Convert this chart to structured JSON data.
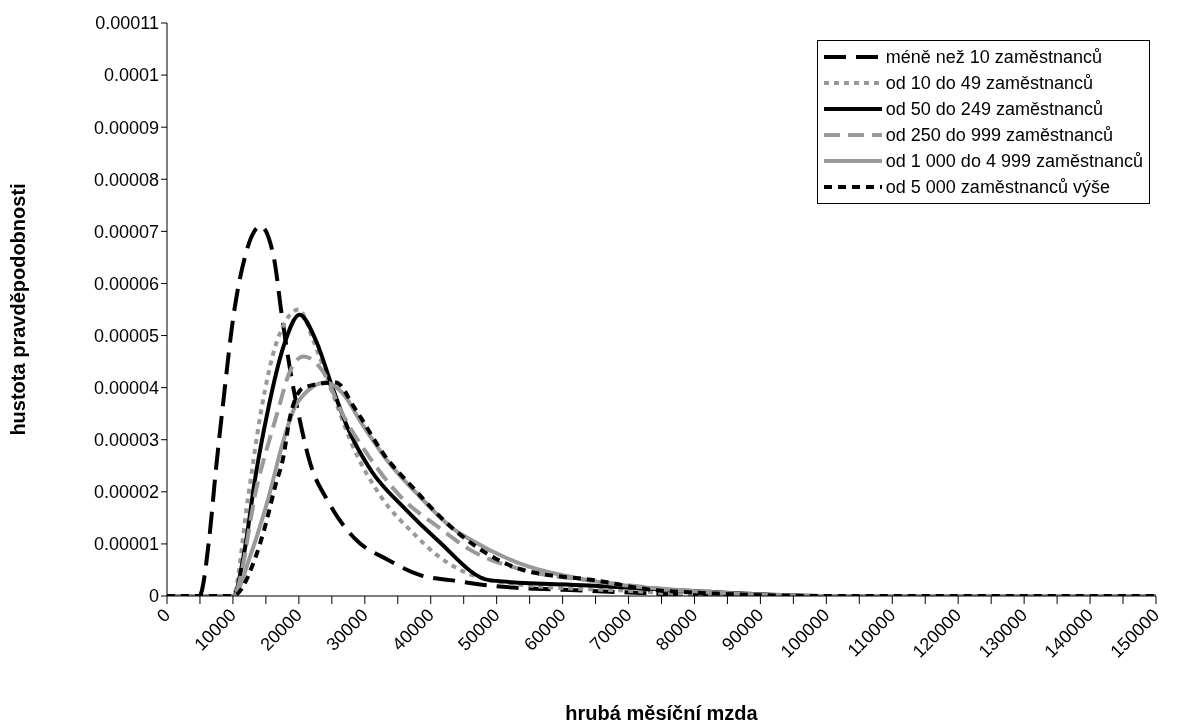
{
  "chart_data": {
    "type": "line",
    "xlabel": "hrubá měsíční mzda",
    "ylabel": "hustota pravděpodobnosti",
    "xlim": [
      0,
      150000
    ],
    "xticks": [
      0,
      {
        "value": 5000,
        "label": null
      },
      10000,
      {
        "value": 15000,
        "label": null
      },
      20000,
      {
        "value": 25000,
        "label": null
      },
      30000,
      {
        "value": 35000,
        "label": null
      },
      40000,
      {
        "value": 45000,
        "label": null
      },
      50000,
      {
        "value": 55000,
        "label": null
      },
      60000,
      {
        "value": 65000,
        "label": null
      },
      70000,
      {
        "value": 75000,
        "label": null
      },
      80000,
      {
        "value": 85000,
        "label": null
      },
      90000,
      {
        "value": 95000,
        "label": null
      },
      100000,
      {
        "value": 105000,
        "label": null
      },
      110000,
      {
        "value": 115000,
        "label": null
      },
      120000,
      {
        "value": 125000,
        "label": null
      },
      130000,
      {
        "value": 135000,
        "label": null
      },
      140000,
      {
        "value": 145000,
        "label": null
      },
      150000
    ],
    "ylim": [
      0,
      0.00011
    ],
    "yticks": [
      0,
      {
        "value": 1e-05,
        "label": "0.00001"
      },
      {
        "value": 2e-05,
        "label": "0.00002"
      },
      {
        "value": 3e-05,
        "label": "0.00003"
      },
      {
        "value": 4e-05,
        "label": "0.00004"
      },
      {
        "value": 5e-05,
        "label": "0.00005"
      },
      {
        "value": 6e-05,
        "label": "0.00006"
      },
      {
        "value": 7e-05,
        "label": "0.00007"
      },
      {
        "value": 8e-05,
        "label": "0.00008"
      },
      {
        "value": 9e-05,
        "label": "0.00009"
      },
      {
        "value": 0.0001,
        "label": "0.0001"
      },
      {
        "value": 0.00011,
        "label": "0.00011"
      }
    ],
    "legend": "top right",
    "marker": "none",
    "series": [
      {
        "name": "méně než 10 zaměstnanců",
        "color": "#000000",
        "line_style": "dashed",
        "x": [
          0,
          4900,
          6400,
          7400,
          8600,
          10000,
          11800,
          14200,
          16200,
          17400,
          18600,
          20100,
          21600,
          24500,
          28500,
          33400,
          38400,
          43300,
          49000,
          64000,
          90000,
          150000
        ],
        "values": [
          0,
          0,
          1.1e-05,
          2.4e-05,
          3.8e-05,
          5.3e-05,
          6.5e-05,
          7.1e-05,
          6.5e-05,
          5.4e-05,
          4.4e-05,
          3.4e-05,
          2.6e-05,
          1.8e-05,
          1.1e-05,
          7e-06,
          4e-06,
          3e-06,
          2e-06,
          1e-06,
          0,
          0
        ]
      },
      {
        "name": "od 10 do 49 zaměstnanců",
        "color": "#999999",
        "line_style": "dotted",
        "x": [
          0,
          10000,
          12300,
          14200,
          16700,
          20000,
          22200,
          25100,
          28100,
          32500,
          37400,
          40800,
          46300,
          55000,
          70000,
          85000,
          150000
        ],
        "values": [
          0,
          0,
          1.9e-05,
          3.5e-05,
          4.9e-05,
          5.5e-05,
          4.9e-05,
          3.9e-05,
          2.9e-05,
          1.9e-05,
          1.2e-05,
          8e-06,
          4e-06,
          2e-06,
          1e-06,
          0,
          0
        ]
      },
      {
        "name": "od 50 do 249 zaměstnanců",
        "color": "#000000",
        "line_style": "solid",
        "x": [
          0,
          10000,
          11800,
          13300,
          15200,
          17700,
          20100,
          22600,
          25100,
          27500,
          31000,
          35900,
          40800,
          49000,
          64000,
          79000,
          100000,
          150000
        ],
        "values": [
          0,
          0,
          9e-06,
          2.2e-05,
          3.5e-05,
          4.8e-05,
          5.4e-05,
          4.9e-05,
          4e-05,
          3.2e-05,
          2.4e-05,
          1.7e-05,
          1.1e-05,
          3e-06,
          2e-06,
          1e-06,
          0,
          0
        ]
      },
      {
        "name": "od 250 do 999 zaměstnanců",
        "color": "#999999",
        "line_style": "dashed",
        "x": [
          0,
          10000,
          13800,
          16700,
          18600,
          20700,
          23700,
          26600,
          30500,
          35500,
          41400,
          45800,
          54000,
          64000,
          79000,
          100000,
          150000
        ],
        "values": [
          0,
          0,
          2.2e-05,
          3.5e-05,
          4.3e-05,
          4.6e-05,
          4.3e-05,
          3.5e-05,
          2.7e-05,
          1.9e-05,
          1.3e-05,
          9e-06,
          5e-06,
          3e-06,
          1e-06,
          0,
          0
        ]
      },
      {
        "name": "od 1 000 do 4 999 zaměstnanců",
        "color": "#999999",
        "line_style": "solid",
        "x": [
          0,
          10000,
          12700,
          15200,
          17700,
          19700,
          24100,
          26600,
          29600,
          33400,
          38400,
          43300,
          45800,
          54000,
          64000,
          79000,
          100000,
          150000
        ],
        "values": [
          0,
          0,
          8e-06,
          1.8e-05,
          3e-05,
          3.7e-05,
          4.1e-05,
          3.9e-05,
          3.3e-05,
          2.6e-05,
          1.9e-05,
          1.3e-05,
          1.1e-05,
          6e-06,
          3e-06,
          1e-06,
          0,
          0
        ]
      },
      {
        "name": "od 5 000 zaměstnanců výše",
        "color": "#000000",
        "line_style": "dotted",
        "x": [
          0,
          10000,
          13300,
          14800,
          16400,
          17700,
          18600,
          20700,
          25600,
          28500,
          33000,
          37900,
          40800,
          46300,
          54000,
          65000,
          75000,
          100000,
          150000
        ],
        "values": [
          0,
          0,
          7e-06,
          1.3e-05,
          2.1e-05,
          2.7e-05,
          3.4e-05,
          4e-05,
          4.1e-05,
          3.6e-05,
          2.7e-05,
          2e-05,
          1.6e-05,
          1e-05,
          5e-06,
          3e-06,
          1e-06,
          0,
          0
        ]
      }
    ]
  }
}
